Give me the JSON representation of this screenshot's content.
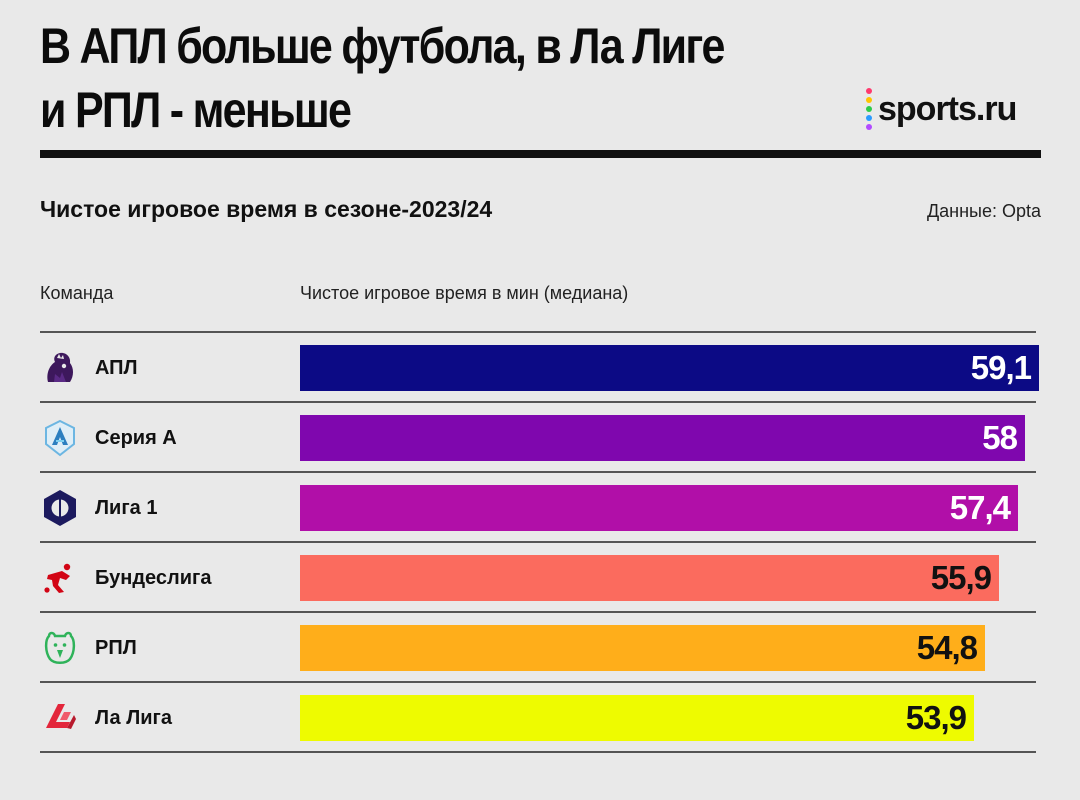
{
  "header": {
    "title_line1": "В АПЛ больше футбола, в Ла Лиге",
    "title_line2": "и РПЛ - меньше",
    "logo_text": "sports.ru",
    "logo_dot_colors": [
      "#ff3a6e",
      "#ffc400",
      "#2ecb4a",
      "#2a9bff",
      "#b24bff"
    ]
  },
  "subtitle": "Чистое игровое время в сезоне-2023/24",
  "source": "Данные: Opta",
  "columns": {
    "team": "Команда",
    "value": "Чистое игровое время в мин (медиана)"
  },
  "chart_data": {
    "type": "bar",
    "orientation": "horizontal",
    "title": "Чистое игровое время в сезоне-2023/24",
    "xlabel": "Чистое игровое время в мин (медиана)",
    "ylabel": "Команда",
    "categories": [
      "АПЛ",
      "Серия А",
      "Лига 1",
      "Бундеслига",
      "РПЛ",
      "Ла Лига"
    ],
    "values": [
      59.1,
      58,
      57.4,
      55.9,
      54.8,
      53.9
    ],
    "value_labels": [
      "59,1",
      "58",
      "57,4",
      "55,9",
      "54,8",
      "53,9"
    ],
    "bar_colors": [
      "#0c0a85",
      "#7f07ae",
      "#b10fa8",
      "#fb6b5e",
      "#ffae1a",
      "#eefb00"
    ],
    "label_colors": [
      "#ffffff",
      "#ffffff",
      "#ffffff",
      "#111111",
      "#111111",
      "#111111"
    ],
    "icons": [
      "premier-league-icon",
      "serie-a-icon",
      "ligue-1-icon",
      "bundesliga-icon",
      "rpl-icon",
      "la-liga-icon"
    ],
    "xlim": [
      0,
      59.1
    ]
  }
}
